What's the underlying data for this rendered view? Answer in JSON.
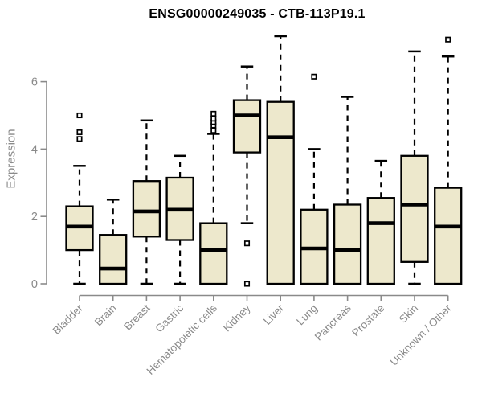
{
  "chart_data": {
    "type": "boxplot",
    "title": "ENSG00000249035 - CTB-113P19.1",
    "xlabel": "",
    "ylabel": "Expression",
    "yticks": [
      0,
      2,
      4,
      6
    ],
    "ylim": [
      0,
      7.6
    ],
    "grid": false,
    "legend": "none",
    "categories": [
      "Bladder",
      "Brain",
      "Breast",
      "Gastric",
      "Hematopoietic cells",
      "Kidney",
      "Liver",
      "Lung",
      "Pancreas",
      "Prostate",
      "Skin",
      "Unknown / Other"
    ],
    "boxes": [
      {
        "label": "Bladder",
        "whisker_low": 0,
        "q1": 1.0,
        "median": 1.7,
        "q3": 2.3,
        "whisker_high": 3.5,
        "outliers": [
          4.3,
          4.5,
          5.0
        ]
      },
      {
        "label": "Brain",
        "whisker_low": null,
        "q1": 0,
        "median": 0.45,
        "q3": 1.45,
        "whisker_high": 2.5,
        "outliers": []
      },
      {
        "label": "Breast",
        "whisker_low": 0,
        "q1": 1.4,
        "median": 2.15,
        "q3": 3.05,
        "whisker_high": 4.85,
        "outliers": []
      },
      {
        "label": "Gastric",
        "whisker_low": 0,
        "q1": 1.3,
        "median": 2.2,
        "q3": 3.15,
        "whisker_high": 3.8,
        "outliers": []
      },
      {
        "label": "Hematopoietic cells",
        "whisker_low": null,
        "q1": 0,
        "median": 1.0,
        "q3": 1.8,
        "whisker_high": 4.45,
        "outliers": [
          4.55,
          4.7,
          4.8,
          4.9,
          5.05
        ]
      },
      {
        "label": "Kidney",
        "whisker_low": 1.8,
        "q1": 3.9,
        "median": 5.0,
        "q3": 5.45,
        "whisker_high": 6.45,
        "outliers": [
          1.2,
          0
        ]
      },
      {
        "label": "Liver",
        "whisker_low": null,
        "q1": 0,
        "median": 4.35,
        "q3": 5.4,
        "whisker_high": 7.35,
        "outliers": []
      },
      {
        "label": "Lung",
        "whisker_low": null,
        "q1": 0,
        "median": 1.05,
        "q3": 2.2,
        "whisker_high": 4.0,
        "outliers": [
          6.15
        ]
      },
      {
        "label": "Pancreas",
        "whisker_low": null,
        "q1": 0,
        "median": 1.0,
        "q3": 2.35,
        "whisker_high": 5.55,
        "outliers": []
      },
      {
        "label": "Prostate",
        "whisker_low": null,
        "q1": 0,
        "median": 1.8,
        "q3": 2.55,
        "whisker_high": 3.65,
        "outliers": []
      },
      {
        "label": "Skin",
        "whisker_low": 0,
        "q1": 0.65,
        "median": 2.35,
        "q3": 3.8,
        "whisker_high": 6.9,
        "outliers": []
      },
      {
        "label": "Unknown / Other",
        "whisker_low": null,
        "q1": 0,
        "median": 1.7,
        "q3": 2.85,
        "whisker_high": 6.75,
        "outliers": [
          7.25
        ]
      }
    ],
    "colors": {
      "box_fill": "#EDE8CC",
      "box_stroke": "#000000",
      "median": "#000000",
      "whisker": "#000000",
      "outlier_fill": "#ffffff",
      "axis": "#8A8A8A",
      "tick_label": "#8A8A8A",
      "title": "#000000"
    }
  }
}
